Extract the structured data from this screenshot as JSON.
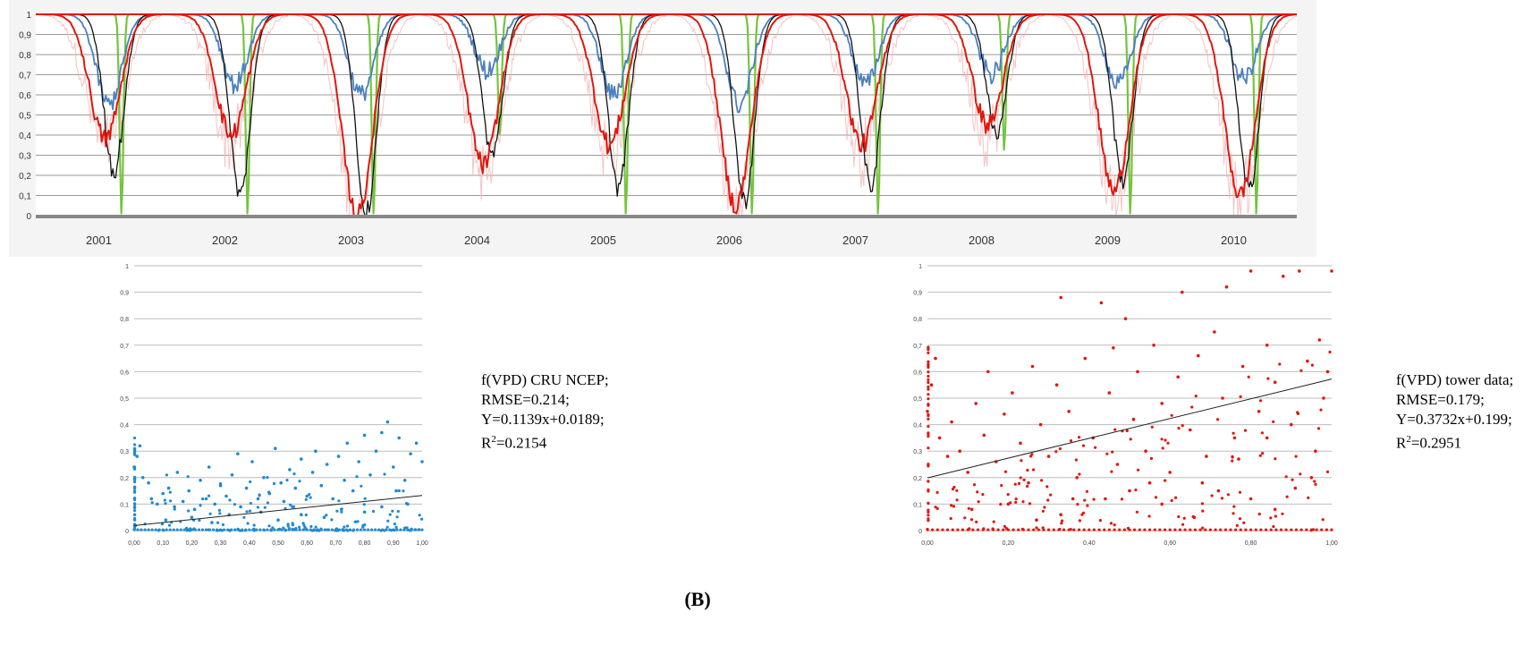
{
  "figure": {
    "caption": "(B)"
  },
  "chart_data": [
    {
      "type": "line",
      "ylim": [
        0,
        1
      ],
      "y_ticks": [
        "0",
        "0,1",
        "0,2",
        "0,3",
        "0,4",
        "0,5",
        "0,6",
        "0,7",
        "0,8",
        "0,9",
        "1"
      ],
      "x_labels": [
        "2001",
        "2002",
        "2003",
        "2004",
        "2005",
        "2006",
        "2007",
        "2008",
        "2009",
        "2010"
      ],
      "grid": true,
      "series_colors": {
        "faint_red": "#f3b4b4",
        "red": "#e3160c",
        "black": "#111111",
        "blue": "#4a7fc1",
        "green": "#74c43c"
      },
      "seasonal_minima": [
        {
          "year": "2001",
          "red": 0.38,
          "black": 0.22,
          "blue": 0.55,
          "green": 0.0
        },
        {
          "year": "2002",
          "red": 0.4,
          "black": 0.1,
          "blue": 0.65,
          "green": 0.0
        },
        {
          "year": "2003",
          "red": 0.0,
          "black": 0.01,
          "blue": 0.6,
          "green": 0.0
        },
        {
          "year": "2004",
          "red": 0.25,
          "black": 0.3,
          "blue": 0.72,
          "green": 0.4
        },
        {
          "year": "2005",
          "red": 0.35,
          "black": 0.14,
          "blue": 0.6,
          "green": 0.0
        },
        {
          "year": "2006",
          "red": 0.05,
          "black": 0.07,
          "blue": 0.55,
          "green": 0.0
        },
        {
          "year": "2007",
          "red": 0.35,
          "black": 0.15,
          "blue": 0.65,
          "green": 0.0
        },
        {
          "year": "2008",
          "red": 0.45,
          "black": 0.4,
          "blue": 0.7,
          "green": 0.32
        },
        {
          "year": "2009",
          "red": 0.12,
          "black": 0.18,
          "blue": 0.65,
          "green": 0.0
        },
        {
          "year": "2010",
          "red": 0.1,
          "black": 0.12,
          "blue": 0.68,
          "green": 0.0
        }
      ]
    },
    {
      "type": "scatter",
      "name": "cru",
      "color": "#1f8ad0",
      "xlim": [
        0,
        1
      ],
      "ylim": [
        0,
        1
      ],
      "x_ticks": [
        "0,00",
        "0,10",
        "0,20",
        "0,30",
        "0,40",
        "0,50",
        "0,60",
        "0,70",
        "0,80",
        "0,90",
        "1,00"
      ],
      "y_ticks": [
        "0",
        "0,1",
        "0,2",
        "0,3",
        "0,4",
        "0,5",
        "0,6",
        "0,7",
        "0,8",
        "0,9",
        "1"
      ],
      "fit": {
        "slope": 0.1139,
        "intercept": 0.0189
      },
      "points": [
        [
          0.02,
          0.32
        ],
        [
          0.01,
          0.28
        ],
        [
          0.0,
          0.24
        ],
        [
          0.03,
          0.2
        ],
        [
          0.05,
          0.18
        ],
        [
          0.06,
          0.12
        ],
        [
          0.08,
          0.1
        ],
        [
          0.1,
          0.14
        ],
        [
          0.12,
          0.16
        ],
        [
          0.14,
          0.09
        ],
        [
          0.15,
          0.22
        ],
        [
          0.17,
          0.11
        ],
        [
          0.19,
          0.15
        ],
        [
          0.21,
          0.08
        ],
        [
          0.23,
          0.19
        ],
        [
          0.25,
          0.12
        ],
        [
          0.26,
          0.24
        ],
        [
          0.28,
          0.1
        ],
        [
          0.3,
          0.17
        ],
        [
          0.32,
          0.13
        ],
        [
          0.34,
          0.21
        ],
        [
          0.36,
          0.29
        ],
        [
          0.37,
          0.09
        ],
        [
          0.39,
          0.16
        ],
        [
          0.41,
          0.26
        ],
        [
          0.43,
          0.12
        ],
        [
          0.45,
          0.2
        ],
        [
          0.47,
          0.14
        ],
        [
          0.49,
          0.31
        ],
        [
          0.51,
          0.18
        ],
        [
          0.52,
          0.11
        ],
        [
          0.54,
          0.23
        ],
        [
          0.56,
          0.16
        ],
        [
          0.58,
          0.27
        ],
        [
          0.6,
          0.13
        ],
        [
          0.62,
          0.22
        ],
        [
          0.63,
          0.3
        ],
        [
          0.65,
          0.17
        ],
        [
          0.67,
          0.25
        ],
        [
          0.69,
          0.12
        ],
        [
          0.71,
          0.28
        ],
        [
          0.73,
          0.19
        ],
        [
          0.74,
          0.33
        ],
        [
          0.76,
          0.15
        ],
        [
          0.78,
          0.26
        ],
        [
          0.8,
          0.36
        ],
        [
          0.82,
          0.21
        ],
        [
          0.84,
          0.3
        ],
        [
          0.86,
          0.37
        ],
        [
          0.88,
          0.41
        ],
        [
          0.9,
          0.24
        ],
        [
          0.92,
          0.35
        ],
        [
          0.94,
          0.19
        ],
        [
          0.96,
          0.29
        ],
        [
          0.98,
          0.33
        ],
        [
          1.0,
          0.26
        ],
        [
          0.44,
          0.07
        ],
        [
          0.58,
          0.06
        ],
        [
          0.72,
          0.08
        ],
        [
          0.86,
          0.09
        ],
        [
          0.2,
          0.05
        ],
        [
          0.33,
          0.06
        ],
        [
          0.5,
          0.04
        ],
        [
          0.66,
          0.05
        ],
        [
          0.8,
          0.07
        ],
        [
          0.95,
          0.1
        ],
        [
          0.11,
          0.04
        ],
        [
          0.27,
          0.03
        ],
        [
          0.55,
          0.09
        ],
        [
          0.91,
          0.15
        ]
      ]
    },
    {
      "type": "scatter",
      "name": "tower",
      "color": "#e3160c",
      "xlim": [
        0,
        1
      ],
      "ylim": [
        0,
        1
      ],
      "x_ticks": [
        "0,00",
        "0,20",
        "0,40",
        "0,60",
        "0,80",
        "1,00"
      ],
      "y_ticks": [
        "0",
        "0,1",
        "0,2",
        "0,3",
        "0,4",
        "0,5",
        "0,6",
        "0,7",
        "0,8",
        "0,9",
        "1"
      ],
      "fit": {
        "slope": 0.3732,
        "intercept": 0.199
      },
      "points": [
        [
          0.02,
          0.65
        ],
        [
          0.01,
          0.55
        ],
        [
          0.0,
          0.45
        ],
        [
          0.03,
          0.35
        ],
        [
          0.05,
          0.28
        ],
        [
          0.06,
          0.41
        ],
        [
          0.08,
          0.3
        ],
        [
          0.1,
          0.22
        ],
        [
          0.12,
          0.48
        ],
        [
          0.14,
          0.36
        ],
        [
          0.15,
          0.6
        ],
        [
          0.17,
          0.26
        ],
        [
          0.19,
          0.44
        ],
        [
          0.21,
          0.52
        ],
        [
          0.23,
          0.33
        ],
        [
          0.25,
          0.18
        ],
        [
          0.26,
          0.62
        ],
        [
          0.28,
          0.4
        ],
        [
          0.3,
          0.28
        ],
        [
          0.32,
          0.55
        ],
        [
          0.33,
          0.88
        ],
        [
          0.35,
          0.45
        ],
        [
          0.37,
          0.2
        ],
        [
          0.39,
          0.65
        ],
        [
          0.41,
          0.35
        ],
        [
          0.43,
          0.86
        ],
        [
          0.45,
          0.52
        ],
        [
          0.47,
          0.25
        ],
        [
          0.49,
          0.8
        ],
        [
          0.51,
          0.42
        ],
        [
          0.52,
          0.6
        ],
        [
          0.54,
          0.3
        ],
        [
          0.56,
          0.7
        ],
        [
          0.58,
          0.48
        ],
        [
          0.6,
          0.22
        ],
        [
          0.62,
          0.58
        ],
        [
          0.63,
          0.9
        ],
        [
          0.65,
          0.38
        ],
        [
          0.67,
          0.66
        ],
        [
          0.69,
          0.28
        ],
        [
          0.71,
          0.75
        ],
        [
          0.73,
          0.5
        ],
        [
          0.74,
          0.92
        ],
        [
          0.76,
          0.35
        ],
        [
          0.78,
          0.62
        ],
        [
          0.8,
          0.98
        ],
        [
          0.82,
          0.45
        ],
        [
          0.84,
          0.7
        ],
        [
          0.86,
          0.56
        ],
        [
          0.88,
          0.96
        ],
        [
          0.9,
          0.4
        ],
        [
          0.92,
          0.98
        ],
        [
          0.94,
          0.64
        ],
        [
          0.96,
          0.3
        ],
        [
          0.98,
          0.5
        ],
        [
          1.0,
          0.98
        ],
        [
          0.44,
          0.12
        ],
        [
          0.58,
          0.1
        ],
        [
          0.72,
          0.15
        ],
        [
          0.86,
          0.08
        ],
        [
          0.2,
          0.1
        ],
        [
          0.33,
          0.06
        ],
        [
          0.5,
          0.15
        ],
        [
          0.66,
          0.05
        ],
        [
          0.8,
          0.12
        ],
        [
          0.95,
          0.2
        ],
        [
          0.11,
          0.08
        ],
        [
          0.27,
          0.04
        ],
        [
          0.55,
          0.18
        ],
        [
          0.91,
          0.16
        ],
        [
          0.36,
          0.12
        ],
        [
          0.46,
          0.69
        ],
        [
          0.68,
          0.18
        ],
        [
          0.77,
          0.27
        ],
        [
          0.84,
          0.35
        ],
        [
          0.97,
          0.72
        ],
        [
          0.99,
          0.6
        ]
      ]
    }
  ],
  "stats": {
    "cru": {
      "title": "f(VPD) CRU NCEP;",
      "rmse": "RMSE=0.214;",
      "equation": "Y=0.1139x+0.0189;",
      "r2_prefix": "R",
      "r2_sup": "2",
      "r2_value": "=0.2154"
    },
    "tower": {
      "title": "f(VPD) tower data;",
      "rmse": "RMSE=0.179;",
      "equation": "Y=0.3732x+0.199;",
      "r2_prefix": "R",
      "r2_sup": "2",
      "r2_value": "=0.2951"
    }
  }
}
